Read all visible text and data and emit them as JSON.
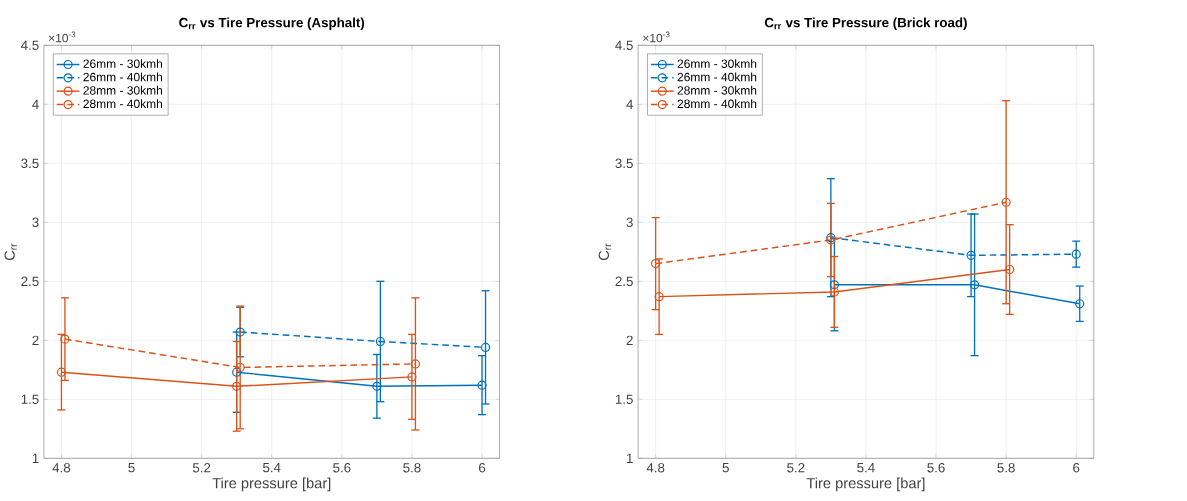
{
  "chart_data": [
    {
      "type": "line",
      "title": "C$_{rr}$ vs Tire Pressure (Asphalt)",
      "xlabel": "Tire pressure [bar]",
      "ylabel": "C$_{rr}$",
      "annotations": [
        "×10$^{-3}$"
      ],
      "xlim": [
        4.75,
        6.05
      ],
      "ylim": [
        1,
        4.5
      ],
      "xticks": [
        4.8,
        5,
        5.2,
        5.4,
        5.6,
        5.8,
        6
      ],
      "yticks": [
        1,
        1.5,
        2,
        2.5,
        3,
        3.5,
        4,
        4.5
      ],
      "grid": true,
      "legend": "top left",
      "marker": "circle",
      "series": [
        {
          "name": "26mm - 30kmh",
          "color": "#0072bd",
          "line_style": "solid",
          "x": [
            5.3,
            5.7,
            6.0
          ],
          "values": [
            1.73,
            1.61,
            1.62
          ],
          "errors": [
            0.34,
            0.27,
            0.25
          ]
        },
        {
          "name": "26mm - 40kmh",
          "color": "#0072bd",
          "line_style": "dashed",
          "x": [
            5.31,
            5.71,
            6.01
          ],
          "values": [
            2.07,
            1.99,
            1.94
          ],
          "errors": [
            0.21,
            0.51,
            0.48
          ]
        },
        {
          "name": "28mm - 30kmh",
          "color": "#d95319",
          "line_style": "solid",
          "x": [
            4.8,
            5.3,
            5.8
          ],
          "values": [
            1.73,
            1.61,
            1.69
          ],
          "errors": [
            0.32,
            0.38,
            0.36
          ]
        },
        {
          "name": "28mm - 40kmh",
          "color": "#d95319",
          "line_style": "dashed",
          "x": [
            4.81,
            5.31,
            5.81
          ],
          "values": [
            2.01,
            1.77,
            1.8
          ],
          "errors": [
            0.35,
            0.52,
            0.56
          ]
        }
      ]
    },
    {
      "type": "line",
      "title": "C$_{rr}$ vs Tire Pressure (Brick road)",
      "xlabel": "Tire pressure [bar]",
      "ylabel": "C$_{rr}$",
      "annotations": [
        "×10$^{-3}$"
      ],
      "xlim": [
        4.75,
        6.05
      ],
      "ylim": [
        1,
        4.5
      ],
      "xticks": [
        4.8,
        5,
        5.2,
        5.4,
        5.6,
        5.8,
        6
      ],
      "yticks": [
        1,
        1.5,
        2,
        2.5,
        3,
        3.5,
        4,
        4.5
      ],
      "grid": true,
      "legend": "top left",
      "marker": "circle",
      "series": [
        {
          "name": "26mm - 30kmh",
          "color": "#0072bd",
          "line_style": "solid",
          "x": [
            5.31,
            5.71,
            6.01
          ],
          "values": [
            2.47,
            2.47,
            2.31
          ],
          "errors": [
            0.39,
            0.6,
            0.15
          ]
        },
        {
          "name": "26mm - 40kmh",
          "color": "#0072bd",
          "line_style": "dashed",
          "x": [
            5.3,
            5.7,
            6.0
          ],
          "values": [
            2.87,
            2.72,
            2.73
          ],
          "errors": [
            0.5,
            0.35,
            0.11
          ]
        },
        {
          "name": "28mm - 30kmh",
          "color": "#d95319",
          "line_style": "solid",
          "x": [
            4.81,
            5.31,
            5.81
          ],
          "values": [
            2.37,
            2.41,
            2.6
          ],
          "errors": [
            0.32,
            0.3,
            0.38
          ]
        },
        {
          "name": "28mm - 40kmh",
          "color": "#d95319",
          "line_style": "dashed",
          "x": [
            4.8,
            5.3,
            5.8
          ],
          "values": [
            2.65,
            2.85,
            3.17
          ],
          "errors": [
            0.39,
            0.31,
            0.86
          ]
        }
      ]
    }
  ]
}
